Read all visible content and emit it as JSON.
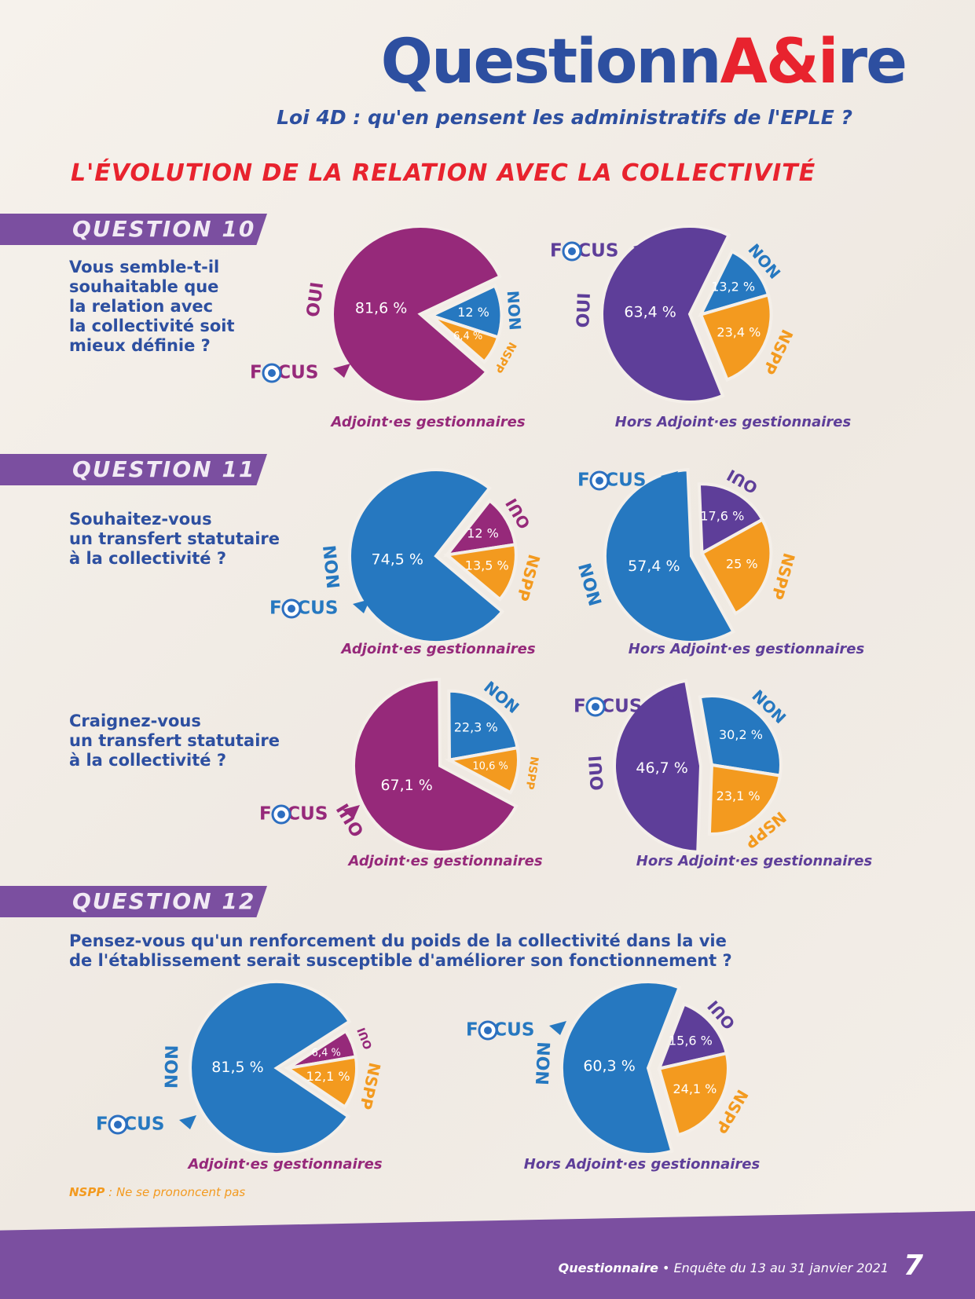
{
  "header": {
    "logo_part1": "Questionn",
    "logo_part2": "A&i",
    "logo_part3": "re",
    "subtitle": "Loi 4D : qu'en pensent les administratifs de l'EPLE ?",
    "section_title": "L'ÉVOLUTION DE LA RELATION AVEC LA COLLECTIVITÉ"
  },
  "questions": [
    {
      "label": "QUESTION 10",
      "lines": [
        "Vous semble-t-il",
        "souhaitable que",
        "la relation avec",
        "la collectivité soit",
        "mieux définie ?"
      ]
    },
    {
      "label": "QUESTION 11",
      "lines": [
        "Souhaitez-vous",
        "un transfert statutaire",
        "à la collectivité ?"
      ]
    },
    {
      "label": "",
      "lines": [
        "Craignez-vous",
        "un transfert statutaire",
        "à la collectivité ?"
      ]
    },
    {
      "label": "QUESTION 12",
      "lines": [
        "Pensez-vous qu'un renforcement du poids de la collectivité dans la vie",
        "de l'établissement serait susceptible d'améliorer son fonctionnement ?"
      ]
    }
  ],
  "focus_label": "FOCUS",
  "colors": {
    "oui_q10": "#96297a",
    "oui_violet": "#5e3e99",
    "non": "#2678c0",
    "nspp": "#f39a1f",
    "oui_q11": "#96297a",
    "title_red": "#e8232e",
    "text_blue": "#2d4fa0"
  },
  "chart_data": [
    {
      "type": "pie",
      "question": "QUESTION 10",
      "caption": "Adjoint·es gestionnaires",
      "slices": [
        {
          "label": "OUI",
          "value": 81.6,
          "text": "81,6 %"
        },
        {
          "label": "NON",
          "value": 12.0,
          "text": "12 %"
        },
        {
          "label": "NSPP",
          "value": 6.4,
          "text": "6,4 %"
        }
      ]
    },
    {
      "type": "pie",
      "question": "QUESTION 10",
      "caption": "Hors Adjoint·es gestionnaires",
      "slices": [
        {
          "label": "OUI",
          "value": 63.4,
          "text": "63,4 %"
        },
        {
          "label": "NON",
          "value": 13.2,
          "text": "13,2 %"
        },
        {
          "label": "NSPP",
          "value": 23.4,
          "text": "23,4 %"
        }
      ]
    },
    {
      "type": "pie",
      "question": "QUESTION 11",
      "caption": "Adjoint·es gestionnaires",
      "slices": [
        {
          "label": "NON",
          "value": 74.5,
          "text": "74,5 %"
        },
        {
          "label": "OUI",
          "value": 12.0,
          "text": "12 %"
        },
        {
          "label": "NSPP",
          "value": 13.5,
          "text": "13,5 %"
        }
      ]
    },
    {
      "type": "pie",
      "question": "QUESTION 11",
      "caption": "Hors Adjoint·es gestionnaires",
      "slices": [
        {
          "label": "NON",
          "value": 57.4,
          "text": "57,4 %"
        },
        {
          "label": "OUI",
          "value": 17.6,
          "text": "17,6 %"
        },
        {
          "label": "NSPP",
          "value": 25.0,
          "text": "25 %"
        }
      ]
    },
    {
      "type": "pie",
      "question": "Craignez-vous un transfert statutaire à la collectivité ?",
      "caption": "Adjoint·es gestionnaires",
      "slices": [
        {
          "label": "OUI",
          "value": 67.1,
          "text": "67,1 %"
        },
        {
          "label": "NON",
          "value": 22.3,
          "text": "22,3 %"
        },
        {
          "label": "NSPP",
          "value": 10.6,
          "text": "10,6 %"
        }
      ]
    },
    {
      "type": "pie",
      "question": "Craignez-vous un transfert statutaire à la collectivité ?",
      "caption": "Hors Adjoint·es gestionnaires",
      "slices": [
        {
          "label": "OUI",
          "value": 46.7,
          "text": "46,7 %"
        },
        {
          "label": "NON",
          "value": 30.2,
          "text": "30,2 %"
        },
        {
          "label": "NSPP",
          "value": 23.1,
          "text": "23,1 %"
        }
      ]
    },
    {
      "type": "pie",
      "question": "QUESTION 12",
      "caption": "Adjoint·es gestionnaires",
      "slices": [
        {
          "label": "NON",
          "value": 81.5,
          "text": "81,5 %"
        },
        {
          "label": "OUI",
          "value": 6.4,
          "text": "6,4 %"
        },
        {
          "label": "NSPP",
          "value": 12.1,
          "text": "12,1 %"
        }
      ]
    },
    {
      "type": "pie",
      "question": "QUESTION 12",
      "caption": "Hors Adjoint·es gestionnaires",
      "slices": [
        {
          "label": "NON",
          "value": 60.3,
          "text": "60,3 %"
        },
        {
          "label": "OUI",
          "value": 15.6,
          "text": "15,6 %"
        },
        {
          "label": "NSPP",
          "value": 24.1,
          "text": "24,1 %"
        }
      ]
    }
  ],
  "note": {
    "abbr": "NSPP",
    "text": " : Ne se prononcent pas"
  },
  "footer": {
    "title": "Questionnaire",
    "sep": " • ",
    "survey": "Enquête du 13 au 31 janvier 2021",
    "page": "7"
  }
}
